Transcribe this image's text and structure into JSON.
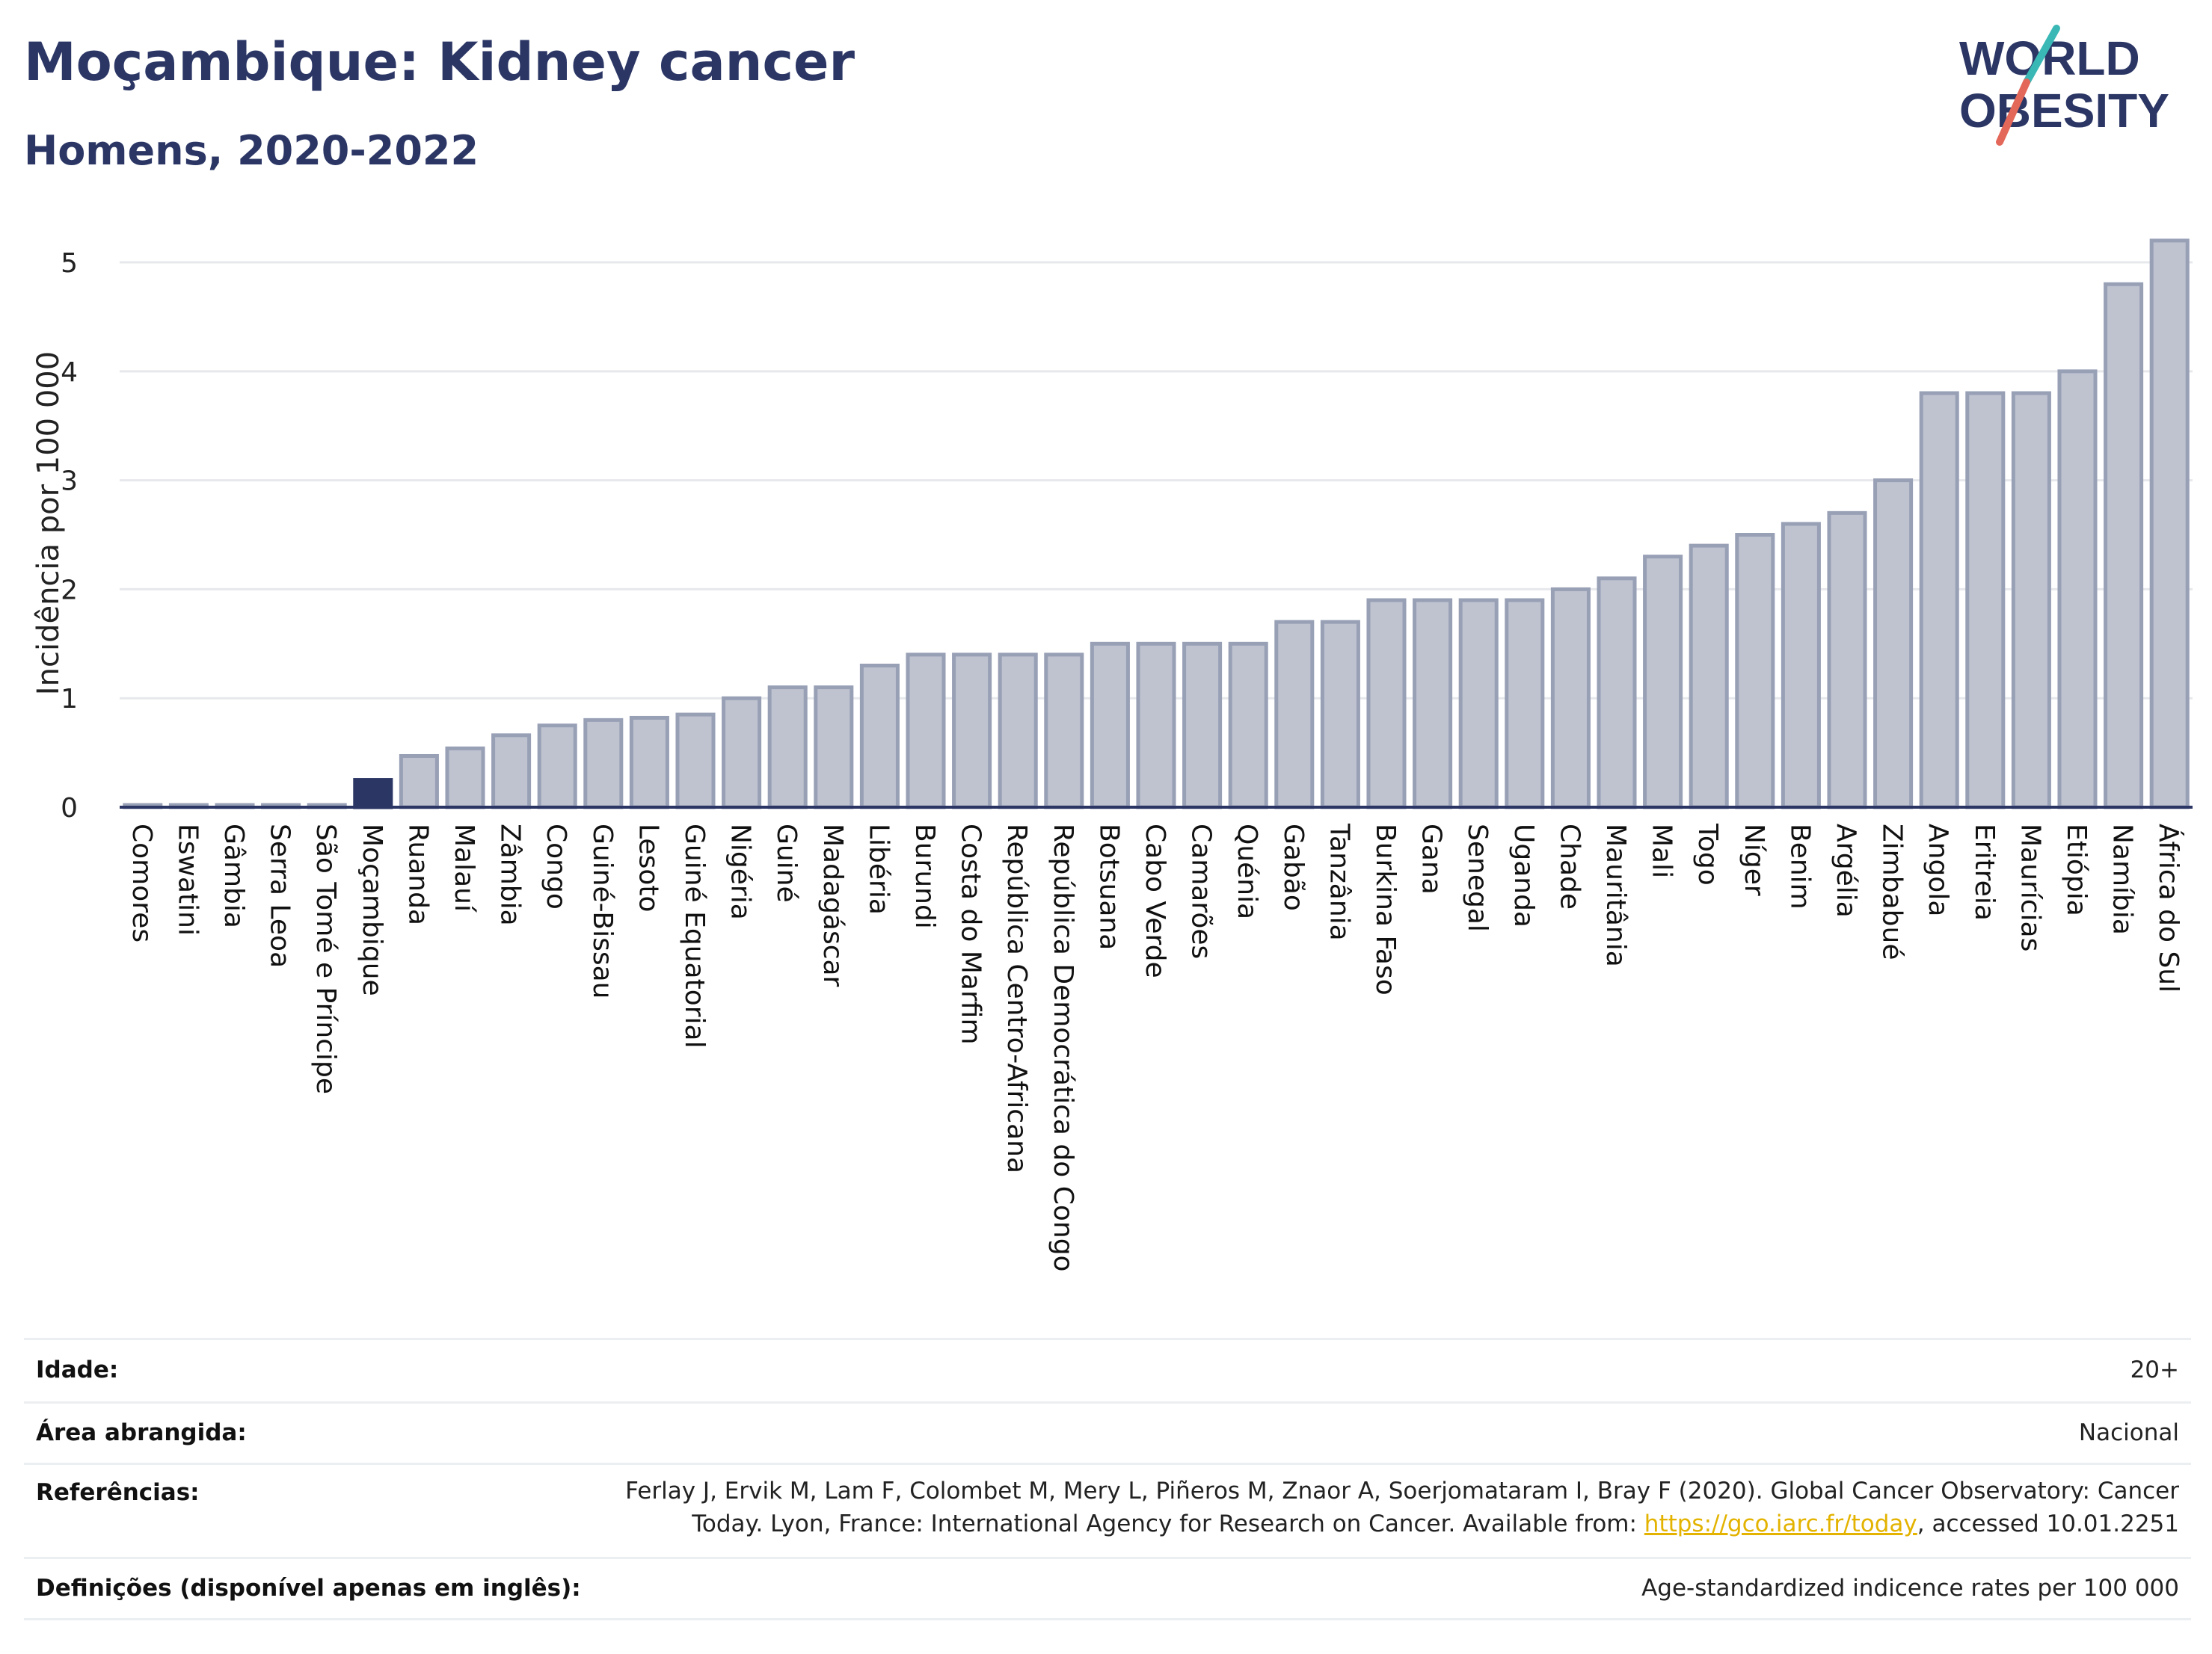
{
  "header": {
    "title": "Moçambique: Kidney cancer",
    "subtitle": "Homens, 2020-2022"
  },
  "logo": {
    "line1": "WORLD",
    "line2": "OBESITY",
    "accent_teal": "#3ab8b6",
    "accent_red": "#e3685a",
    "text_color": "#2b3665"
  },
  "colors": {
    "bar_fill": "#bfc3d0",
    "bar_stroke": "#98a0b6",
    "highlight_fill": "#2b3665",
    "grid": "#e6e8ec",
    "axis": "#2b3665"
  },
  "chart_data": {
    "type": "bar",
    "ylabel": "Incidência por 100 000",
    "ylim": [
      0,
      5.35
    ],
    "yticks": [
      0,
      1,
      2,
      3,
      4,
      5
    ],
    "grid": true,
    "highlight": "Moçambique",
    "categories": [
      "Comores",
      "Eswatini",
      "Gâmbia",
      "Serra Leoa",
      "São Tomé e Príncipe",
      "Moçambique",
      "Ruanda",
      "Malauí",
      "Zâmbia",
      "Congo",
      "Guiné-Bissau",
      "Lesoto",
      "Guiné Equatorial",
      "Nigéria",
      "Guiné",
      "Madagáscar",
      "Libéria",
      "Burundi",
      "Costa do Marfim",
      "República Centro-Africana",
      "República Democrática do Congo",
      "Botsuana",
      "Cabo Verde",
      "Camarões",
      "Quénia",
      "Gabão",
      "Tanzânia",
      "Burkina Faso",
      "Gana",
      "Senegal",
      "Uganda",
      "Chade",
      "Mauritânia",
      "Mali",
      "Togo",
      "Níger",
      "Benim",
      "Argélia",
      "Zimbabué",
      "Angola",
      "Eritreia",
      "Maurícias",
      "Etiópia",
      "Namíbia",
      "África do Sul"
    ],
    "values": [
      0.02,
      0.02,
      0.02,
      0.02,
      0.02,
      0.25,
      0.47,
      0.54,
      0.66,
      0.75,
      0.8,
      0.82,
      0.85,
      1.0,
      1.1,
      1.1,
      1.3,
      1.4,
      1.4,
      1.4,
      1.4,
      1.5,
      1.5,
      1.5,
      1.5,
      1.7,
      1.7,
      1.9,
      1.9,
      1.9,
      1.9,
      2.0,
      2.1,
      2.3,
      2.4,
      2.5,
      2.6,
      2.7,
      3.0,
      3.8,
      3.8,
      3.8,
      4.0,
      4.8,
      5.2
    ]
  },
  "info": {
    "age": {
      "label": "Idade:",
      "value": "20+"
    },
    "area": {
      "label": "Área abrangida:",
      "value": "Nacional"
    },
    "references": {
      "label": "Referências:",
      "text1": "Ferlay J, Ervik M, Lam F, Colombet M, Mery L, Piñeros M, Znaor A, Soerjomataram I, Bray F (2020). Global Cancer Observatory: Cancer Today. Lyon, France: International Agency for Research on Cancer. Available from: ",
      "link": "https://gco.iarc.fr/today",
      "text2": ", accessed 10.01.2251"
    },
    "definitions": {
      "label": "Definições (disponível apenas em inglês):",
      "value": "Age-standardized indicence rates per 100 000"
    }
  }
}
